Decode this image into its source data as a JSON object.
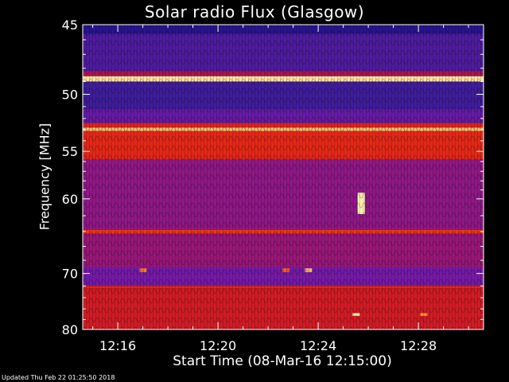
{
  "chart_data": {
    "type": "heatmap",
    "title": "Solar radio Flux (Glasgow)",
    "ylabel": "Frequency [MHz]",
    "xlabel": "Start Time (08-Mar-16 12:15:00)",
    "ylim": [
      45,
      80
    ],
    "y_ticks": [
      "45",
      "50",
      "55",
      "60",
      "70",
      "80"
    ],
    "y_tick_values": [
      45,
      50,
      55,
      60,
      70,
      80
    ],
    "y_scale": "reciprocal",
    "xlim_minutes": [
      -0.4,
      15.6
    ],
    "x_ticks": [
      "12:16",
      "12:20",
      "12:24",
      "12:28"
    ],
    "x_tick_minutes": [
      1,
      5,
      9,
      13
    ],
    "colormap": [
      "#0a0a7a",
      "#3a1d9a",
      "#7a1aa8",
      "#c4132e",
      "#f03010",
      "#ff8a2a",
      "#fff4b0"
    ],
    "bands": [
      {
        "mhz": [
          45.0,
          45.6
        ],
        "level": 0.1
      },
      {
        "mhz": [
          45.6,
          48.2
        ],
        "level": 0.22
      },
      {
        "mhz": [
          48.2,
          48.6
        ],
        "level": 0.45
      },
      {
        "mhz": [
          48.6,
          49.0
        ],
        "level": 0.98
      },
      {
        "mhz": [
          49.0,
          51.2
        ],
        "level": 0.18
      },
      {
        "mhz": [
          51.2,
          52.4
        ],
        "level": 0.28
      },
      {
        "mhz": [
          52.4,
          52.8
        ],
        "level": 0.6
      },
      {
        "mhz": [
          52.8,
          53.1
        ],
        "level": 0.92
      },
      {
        "mhz": [
          53.1,
          55.8
        ],
        "level": 0.62
      },
      {
        "mhz": [
          55.8,
          63.8
        ],
        "level": 0.38
      },
      {
        "mhz": [
          63.8,
          64.3
        ],
        "level": 0.68
      },
      {
        "mhz": [
          64.3,
          69.0
        ],
        "level": 0.4
      },
      {
        "mhz": [
          69.0,
          72.0
        ],
        "level": 0.32
      },
      {
        "mhz": [
          72.0,
          72.4
        ],
        "level": 0.62
      },
      {
        "mhz": [
          72.4,
          80.0
        ],
        "level": 0.55
      }
    ],
    "bursts": [
      {
        "minute": 10.7,
        "mhz": [
          59.3,
          61.8
        ],
        "level": 1.0
      },
      {
        "minute": 10.5,
        "mhz": [
          76.8,
          77.3
        ],
        "level": 1.0
      },
      {
        "minute": 13.2,
        "mhz": [
          76.8,
          77.3
        ],
        "level": 0.85
      },
      {
        "minute": 2.0,
        "mhz": [
          69.2,
          69.8
        ],
        "level": 0.8
      },
      {
        "minute": 7.7,
        "mhz": [
          69.2,
          69.8
        ],
        "level": 0.75
      },
      {
        "minute": 8.6,
        "mhz": [
          69.2,
          69.8
        ],
        "level": 0.9
      }
    ]
  },
  "footer": "Updated Thu Feb 22 01:25:50 2018"
}
